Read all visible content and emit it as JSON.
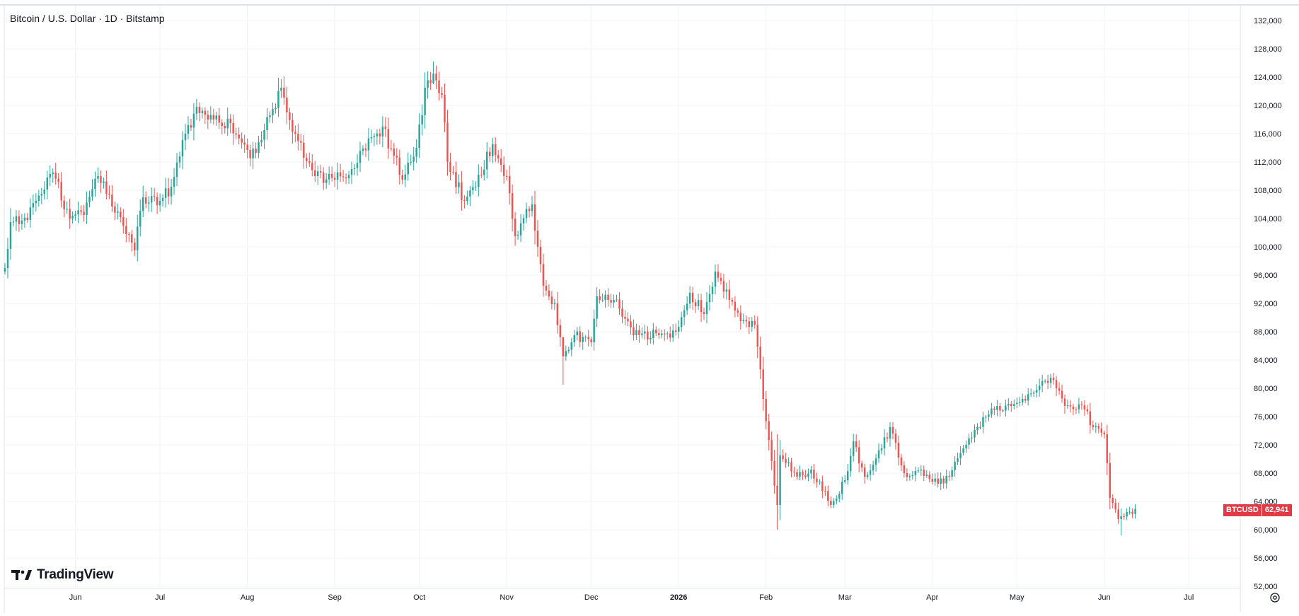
{
  "header": {
    "title": "Bitcoin / U.S. Dollar · 1D · Bitstamp"
  },
  "branding": {
    "logo_text": "TradingView"
  },
  "price_badge": {
    "symbol": "BTCUSD",
    "price": "62,941",
    "color": "#e23a44"
  },
  "colors": {
    "up": "#26a69a",
    "down": "#ef5350",
    "grid": "#f0f3fa",
    "axis_text": "#131722"
  },
  "icons": {
    "settings": "gear-icon",
    "logo": "tradingview-logo-icon"
  },
  "chart_data": {
    "type": "candlestick",
    "title": "Bitcoin / U.S. Dollar · 1D · Bitstamp",
    "interval": "1D",
    "exchange": "Bitstamp",
    "symbol": "BTCUSD",
    "last_price": 62941,
    "ylim": [
      52000,
      134000
    ],
    "y_ticks": [
      {
        "value": 52000,
        "label": "52,000"
      },
      {
        "value": 56000,
        "label": "56,000"
      },
      {
        "value": 60000,
        "label": "60,000"
      },
      {
        "value": 64000,
        "label": "64,000"
      },
      {
        "value": 68000,
        "label": "68,000"
      },
      {
        "value": 72000,
        "label": "72,000"
      },
      {
        "value": 76000,
        "label": "76,000"
      },
      {
        "value": 80000,
        "label": "80,000"
      },
      {
        "value": 84000,
        "label": "84,000"
      },
      {
        "value": 88000,
        "label": "88,000"
      },
      {
        "value": 92000,
        "label": "92,000"
      },
      {
        "value": 96000,
        "label": "96,000"
      },
      {
        "value": 100000,
        "label": "100,000"
      },
      {
        "value": 104000,
        "label": "104,000"
      },
      {
        "value": 108000,
        "label": "108,000"
      },
      {
        "value": 112000,
        "label": "112,000"
      },
      {
        "value": 116000,
        "label": "116,000"
      },
      {
        "value": 120000,
        "label": "120,000"
      },
      {
        "value": 124000,
        "label": "124,000"
      },
      {
        "value": 128000,
        "label": "128,000"
      },
      {
        "value": 132000,
        "label": "132,000"
      }
    ],
    "x_ticks": [
      {
        "label": "Jun",
        "date": "2025-06-01"
      },
      {
        "label": "Jul",
        "date": "2025-07-01"
      },
      {
        "label": "Aug",
        "date": "2025-08-01"
      },
      {
        "label": "Sep",
        "date": "2025-09-01"
      },
      {
        "label": "Oct",
        "date": "2025-10-01"
      },
      {
        "label": "Nov",
        "date": "2025-11-01"
      },
      {
        "label": "Dec",
        "date": "2025-12-01"
      },
      {
        "label": "2026",
        "date": "2026-01-01",
        "bold": true
      },
      {
        "label": "Feb",
        "date": "2026-02-01"
      },
      {
        "label": "Mar",
        "date": "2026-03-01"
      },
      {
        "label": "Apr",
        "date": "2026-04-01"
      },
      {
        "label": "May",
        "date": "2026-05-01"
      },
      {
        "label": "Jun",
        "date": "2026-06-01"
      },
      {
        "label": "Jul",
        "date": "2026-07-01"
      }
    ],
    "xlim": [
      "2025-05-07",
      "2026-07-19"
    ],
    "close_series": [
      [
        "2025-05-07",
        97000
      ],
      [
        "2025-05-09",
        103500
      ],
      [
        "2025-05-15",
        103800
      ],
      [
        "2025-05-22",
        109800
      ],
      [
        "2025-05-24",
        110500
      ],
      [
        "2025-05-30",
        104000
      ],
      [
        "2025-06-04",
        104500
      ],
      [
        "2025-06-09",
        110000
      ],
      [
        "2025-06-12",
        107500
      ],
      [
        "2025-06-17",
        104200
      ],
      [
        "2025-06-22",
        99500
      ],
      [
        "2025-06-25",
        107000
      ],
      [
        "2025-07-01",
        106500
      ],
      [
        "2025-07-05",
        108500
      ],
      [
        "2025-07-10",
        116000
      ],
      [
        "2025-07-14",
        119800
      ],
      [
        "2025-07-20",
        118000
      ],
      [
        "2025-07-26",
        117500
      ],
      [
        "2025-08-02",
        112500
      ],
      [
        "2025-08-07",
        116500
      ],
      [
        "2025-08-13",
        122500
      ],
      [
        "2025-08-18",
        116000
      ],
      [
        "2025-08-25",
        110000
      ],
      [
        "2025-09-01",
        109500
      ],
      [
        "2025-09-07",
        111000
      ],
      [
        "2025-09-14",
        115500
      ],
      [
        "2025-09-18",
        117000
      ],
      [
        "2025-09-25",
        109500
      ],
      [
        "2025-09-30",
        114000
      ],
      [
        "2025-10-03",
        122500
      ],
      [
        "2025-10-06",
        124500
      ],
      [
        "2025-10-09",
        121500
      ],
      [
        "2025-10-11",
        112000
      ],
      [
        "2025-10-17",
        106500
      ],
      [
        "2025-10-21",
        108500
      ],
      [
        "2025-10-27",
        114500
      ],
      [
        "2025-11-01",
        110000
      ],
      [
        "2025-11-04",
        101500
      ],
      [
        "2025-11-10",
        106000
      ],
      [
        "2025-11-14",
        94500
      ],
      [
        "2025-11-18",
        92000
      ],
      [
        "2025-11-21",
        84500
      ],
      [
        "2025-11-25",
        87500
      ],
      [
        "2025-12-01",
        86500
      ],
      [
        "2025-12-03",
        93000
      ],
      [
        "2025-12-09",
        92500
      ],
      [
        "2025-12-16",
        87500
      ],
      [
        "2025-12-25",
        87500
      ],
      [
        "2025-12-31",
        88000
      ],
      [
        "2026-01-05",
        93500
      ],
      [
        "2026-01-10",
        90500
      ],
      [
        "2026-01-14",
        96500
      ],
      [
        "2026-01-19",
        92500
      ],
      [
        "2026-01-23",
        89500
      ],
      [
        "2026-01-28",
        89000
      ],
      [
        "2026-01-31",
        78500
      ],
      [
        "2026-02-05",
        63500
      ],
      [
        "2026-02-06",
        70500
      ],
      [
        "2026-02-12",
        67500
      ],
      [
        "2026-02-17",
        68500
      ],
      [
        "2026-02-24",
        63500
      ],
      [
        "2026-03-01",
        67000
      ],
      [
        "2026-03-04",
        72500
      ],
      [
        "2026-03-08",
        67500
      ],
      [
        "2026-03-14",
        71500
      ],
      [
        "2026-03-17",
        74500
      ],
      [
        "2026-03-22",
        68000
      ],
      [
        "2026-03-28",
        68500
      ],
      [
        "2026-04-03",
        66500
      ],
      [
        "2026-04-07",
        67500
      ],
      [
        "2026-04-12",
        71500
      ],
      [
        "2026-04-17",
        74500
      ],
      [
        "2026-04-24",
        77500
      ],
      [
        "2026-04-29",
        77500
      ],
      [
        "2026-05-03",
        78500
      ],
      [
        "2026-05-10",
        81000
      ],
      [
        "2026-05-13",
        81500
      ],
      [
        "2026-05-18",
        77500
      ],
      [
        "2026-05-25",
        77000
      ],
      [
        "2026-05-28",
        74500
      ],
      [
        "2026-06-01",
        73500
      ],
      [
        "2026-06-03",
        64500
      ],
      [
        "2026-06-06",
        61500
      ],
      [
        "2026-06-09",
        62500
      ],
      [
        "2026-06-12",
        62941
      ]
    ],
    "candle_overrides": [
      {
        "date": "2025-10-06",
        "high": 126200,
        "low": 123000
      },
      {
        "date": "2025-11-21",
        "high": 86000,
        "low": 80500
      },
      {
        "date": "2026-02-05",
        "high": 73500,
        "low": 60000
      },
      {
        "date": "2026-06-07",
        "high": 63000,
        "low": 59200
      }
    ]
  }
}
